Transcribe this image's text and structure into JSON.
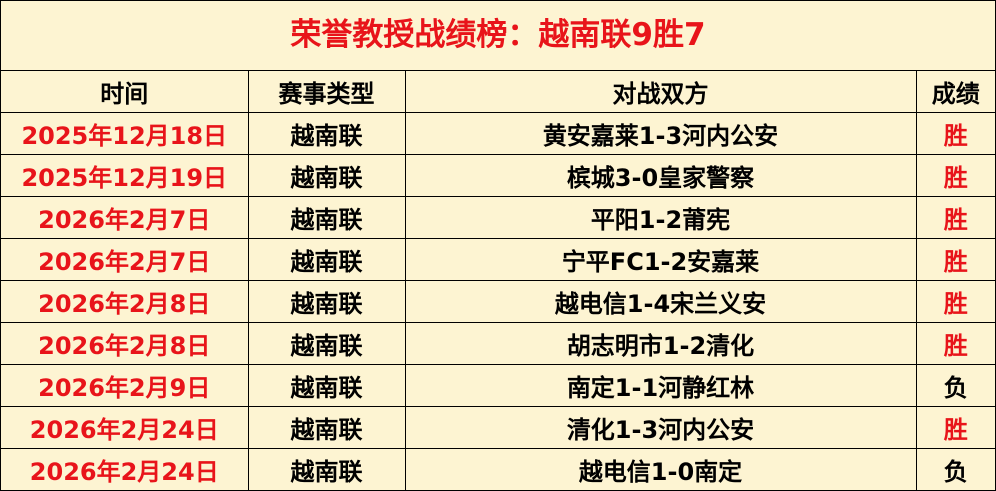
{
  "header": {
    "title": "荣誉教授战绩榜：越南联9胜7"
  },
  "table": {
    "columns": [
      "时间",
      "赛事类型",
      "对战双方",
      "成绩"
    ],
    "rows": [
      [
        "2025年12月18日",
        "越南联",
        "黄安嘉莱1-3河内公安",
        "胜"
      ],
      [
        "2025年12月19日",
        "越南联",
        "槟城3-0皇家警察",
        "胜"
      ],
      [
        "2026年2月7日",
        "越南联",
        "平阳1-2莆宪",
        "胜"
      ],
      [
        "2026年2月7日",
        "越南联",
        "宁平FC1-2安嘉莱",
        "胜"
      ],
      [
        "2026年2月8日",
        "越南联",
        "越电信1-4宋兰义安",
        "胜"
      ],
      [
        "2026年2月8日",
        "越南联",
        "胡志明市1-2清化",
        "胜"
      ],
      [
        "2026年2月9日",
        "越南联",
        "南定1-1河静红林",
        "负"
      ],
      [
        "2026年2月24日",
        "越南联",
        "清化1-3河内公安",
        "胜"
      ],
      [
        "2026年2月24日",
        "越南联",
        "越电信1-0南定",
        "负"
      ]
    ]
  }
}
